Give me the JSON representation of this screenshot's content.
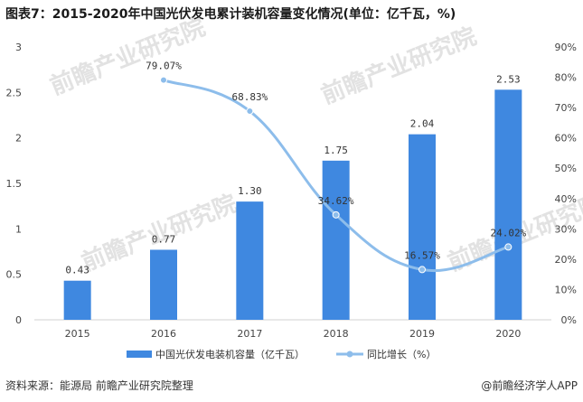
{
  "title": "图表7：2015-2020年中国光伏发电累计装机容量变化情况(单位：亿千瓦，%)",
  "footer": {
    "source": "资料来源：能源局 前瞻产业研究院整理",
    "brand": "@前瞻经济学人APP"
  },
  "watermark": "前瞻产业研究院",
  "chart_data": {
    "type": "bar",
    "categories": [
      "2015",
      "2016",
      "2017",
      "2018",
      "2019",
      "2020"
    ],
    "series": [
      {
        "name": "中国光伏发电装机容量（亿千瓦）",
        "type": "bar",
        "axis": "left",
        "values": [
          0.43,
          0.77,
          1.3,
          1.75,
          2.04,
          2.53
        ],
        "labels": [
          "0.43",
          "0.77",
          "1.30",
          "1.75",
          "2.04",
          "2.53"
        ],
        "color": "#3f88e0"
      },
      {
        "name": "同比增长（%）",
        "type": "line",
        "axis": "right",
        "values": [
          null,
          79.07,
          68.83,
          34.62,
          16.57,
          24.02
        ],
        "labels": [
          "",
          "79.07%",
          "68.83%",
          "34.62%",
          "16.57%",
          "24.02%"
        ],
        "color": "#8dbdeb"
      }
    ],
    "y_left": {
      "min": 0,
      "max": 3,
      "ticks": [
        "0",
        "0.5",
        "1",
        "1.5",
        "2",
        "2.5",
        "3"
      ]
    },
    "y_right": {
      "min": 0,
      "max": 90,
      "ticks": [
        "0%",
        "10%",
        "20%",
        "30%",
        "40%",
        "50%",
        "60%",
        "70%",
        "80%",
        "90%"
      ]
    },
    "grid": false,
    "legend_position": "bottom"
  }
}
